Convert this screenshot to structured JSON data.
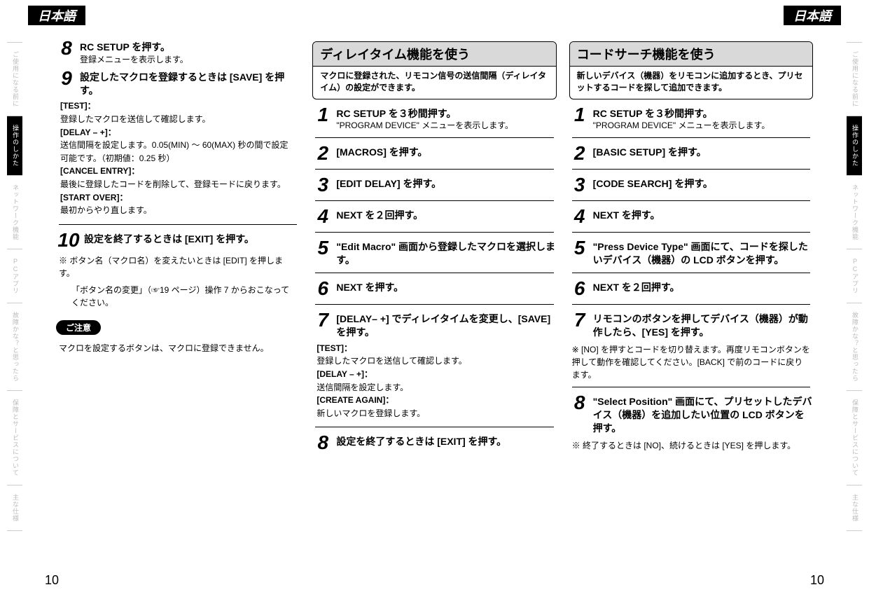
{
  "header": {
    "lang": "日本語"
  },
  "sideTabs": [
    {
      "label": "ご使用になる前に",
      "active": false
    },
    {
      "label": "操作のしかた",
      "active": true
    },
    {
      "label": "ネットワーク機能",
      "active": false
    },
    {
      "label": "PCアプリ",
      "active": false
    },
    {
      "label": "故障かな？と思ったら",
      "active": false
    },
    {
      "label": "保障とサービスについて",
      "active": false
    },
    {
      "label": "主な仕様",
      "active": false
    }
  ],
  "col1": {
    "step8": {
      "num": "8",
      "title": "RC SETUP を押す。",
      "sub": "登録メニューを表示します。"
    },
    "step9": {
      "num": "9",
      "title": "設定したマクロを登録するときは [SAVE] を押す。"
    },
    "info9": {
      "testLabel": "[TEST]：",
      "testText": "登録したマクロを送信して確認します。",
      "delayLabel": "[DELAY – +]：",
      "delayText": " 送信間隔を設定します。0.05(MIN) ～ 60(MAX) 秒の間で設定可能です。（初期値：0.25 秒）",
      "cancelLabel": "[CANCEL ENTRY]：",
      "cancelText": "最後に登録したコードを削除して、登録モードに戻ります。",
      "startLabel": "[START OVER]：",
      "startText": "最初からやり直します。"
    },
    "step10": {
      "num": "10",
      "title": "設定を終了するときは [EXIT] を押す。"
    },
    "note1": "※ ボタン名（マクロ名）を変えたいときは [EDIT] を押します。",
    "note2": "「ボタン名の変更」（☞19 ページ）操作 7 からおこなってください。",
    "cautionLabel": "ご注意",
    "cautionText": "マクロを設定するボタンは、マクロに登録できません。"
  },
  "col2": {
    "sectionTitle": "ディレイタイム機能を使う",
    "sectionSub": "マクロに登録された、リモコン信号の送信間隔（ディレイタイム）の設定ができます。",
    "s1": {
      "num": "1",
      "title": "RC SETUP を３秒間押す。",
      "sub": "\"PROGRAM DEVICE\" メニューを表示します。"
    },
    "s2": {
      "num": "2",
      "title": "[MACROS] を押す。"
    },
    "s3": {
      "num": "3",
      "title": "[EDIT DELAY] を押す。"
    },
    "s4": {
      "num": "4",
      "title": "NEXT を２回押す。"
    },
    "s5": {
      "num": "5",
      "title": "\"Edit Macro\" 画面から登録したマクロを選択します。"
    },
    "s6": {
      "num": "6",
      "title": "NEXT を押す。"
    },
    "s7": {
      "num": "7",
      "title": "[DELAY– +] でディレイタイムを変更し、[SAVE] を押す。"
    },
    "info7": {
      "testLabel": "[TEST]：",
      "testText": "登録したマクロを送信して確認します。",
      "delayLabel": "[DELAY – +]：",
      "delayText": "送信間隔を設定します。",
      "createLabel": "[CREATE AGAIN]：",
      "createText": "新しいマクロを登録します。"
    },
    "s8": {
      "num": "8",
      "title": "設定を終了するときは [EXIT] を押す。"
    }
  },
  "col3": {
    "sectionTitle": "コードサーチ機能を使う",
    "sectionSub": "新しいデバイス（機器）をリモコンに追加するとき、プリセットするコードを探して追加できます。",
    "s1": {
      "num": "1",
      "title": "RC SETUP を３秒間押す。",
      "sub": "\"PROGRAM DEVICE\" メニューを表示します。"
    },
    "s2": {
      "num": "2",
      "title": "[BASIC SETUP] を押す。"
    },
    "s3": {
      "num": "3",
      "title": "[CODE SEARCH] を押す。"
    },
    "s4": {
      "num": "4",
      "title": "NEXT を押す。"
    },
    "s5": {
      "num": "5",
      "title": "\"Press Device Type\" 画面にて、コードを探したいデバイス（機器）の LCD ボタンを押す。"
    },
    "s6": {
      "num": "6",
      "title": "NEXT を２回押す。"
    },
    "s7": {
      "num": "7",
      "title": "リモコンのボタンを押してデバイス（機器）が動作したら、[YES] を押す。"
    },
    "note7": "※ [NO] を押すとコードを切り替えます。再度リモコンボタンを押して動作を確認してください。[BACK] で前のコードに戻ります。",
    "s8": {
      "num": "8",
      "title": "\"Select Position\" 画面にて、プリセットしたデバイス（機器）を追加したい位置の LCD ボタンを押す。"
    },
    "note8": "※ 終了するときは [NO]、続けるときは [YES] を押します。"
  },
  "pageNum": "10"
}
